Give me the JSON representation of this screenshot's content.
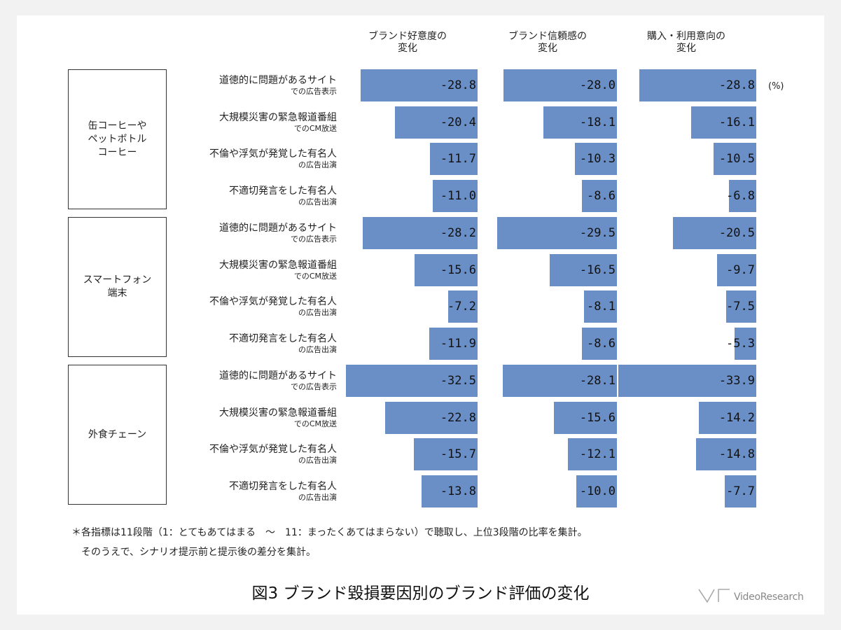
{
  "chart_data": {
    "type": "bar",
    "unit": "(%)",
    "columns": [
      {
        "label": "ブランド好意度の\n変化"
      },
      {
        "label": "ブランド信頼感の\n変化"
      },
      {
        "label": "購入・利用意向の\n変化"
      }
    ],
    "row_labels": [
      {
        "main": "道徳的に問題があるサイト",
        "sub": "での広告表示"
      },
      {
        "main": "大規模災害の緊急報道番組",
        "sub": "でのCM放送"
      },
      {
        "main": "不倫や浮気が発覚した有名人",
        "sub": "の広告出演"
      },
      {
        "main": "不適切発言をした有名人",
        "sub": "の広告出演"
      }
    ],
    "groups": [
      {
        "name": "缶コーヒーや\nペットボトル\nコーヒー",
        "values": [
          [
            -28.8,
            -28.0,
            -28.8
          ],
          [
            -20.4,
            -18.1,
            -16.1
          ],
          [
            -11.7,
            -10.3,
            -10.5
          ],
          [
            -11.0,
            -8.6,
            -6.8
          ]
        ]
      },
      {
        "name": "スマートフォン\n端末",
        "values": [
          [
            -28.2,
            -29.5,
            -20.5
          ],
          [
            -15.6,
            -16.5,
            -9.7
          ],
          [
            -7.2,
            -8.1,
            -7.5
          ],
          [
            -11.9,
            -8.6,
            -5.3
          ]
        ]
      },
      {
        "name": "外食チェーン",
        "values": [
          [
            -32.5,
            -28.1,
            -33.9
          ],
          [
            -22.8,
            -15.6,
            -14.2
          ],
          [
            -15.7,
            -12.1,
            -14.8
          ],
          [
            -13.8,
            -10.0,
            -7.7
          ]
        ]
      }
    ]
  },
  "notes": [
    "＊各指標は11段階（1：とてもあてはまる　～　11：まったくあてはまらない）で聴取し、上位3段階の比率を集計。",
    "　そのうえで、シナリオ提示前と提示後の差分を集計。"
  ],
  "caption": "図3 ブランド毀損要因別のブランド評価の変化",
  "logo": "VideoResearch",
  "colors": {
    "bar": "#6a8fc7",
    "background": "#f2f2f2"
  }
}
